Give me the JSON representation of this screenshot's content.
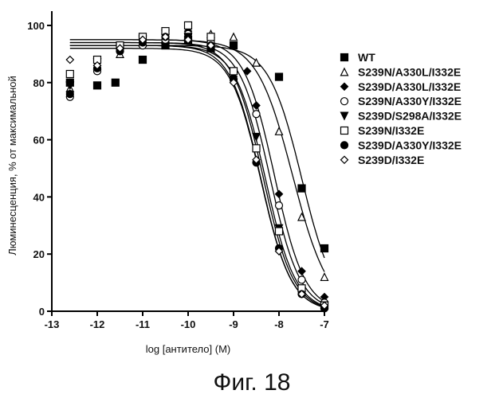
{
  "chart_data": {
    "type": "scatter",
    "xlabel": "log [антитело] (M)",
    "ylabel": "Люминесценция, % от максимальной",
    "xlim": [
      -13,
      -7
    ],
    "ylim": [
      0,
      105
    ],
    "x_ticks": [
      -13,
      -12,
      -11,
      -10,
      -9,
      -8,
      -7
    ],
    "y_ticks": [
      0,
      20,
      40,
      60,
      80,
      100
    ],
    "legend_position": "right",
    "grid": false,
    "caption": "Фиг. 18",
    "series": [
      {
        "name": "WT",
        "marker": "square-filled",
        "x": [
          -12.6,
          -12,
          -11.6,
          -11,
          -10.5,
          -10,
          -9.5,
          -9,
          -8,
          -7.5,
          -7
        ],
        "y": [
          80,
          79,
          80,
          88,
          93,
          95,
          92,
          93,
          82,
          43,
          22
        ],
        "fit": {
          "top": 93,
          "bottom": 0,
          "logec50": -7.5,
          "hill": 1.2
        }
      },
      {
        "name": "S239N/A330L/I332E",
        "marker": "triangle-open",
        "x": [
          -12.6,
          -12,
          -11.5,
          -11,
          -10.5,
          -10,
          -9.5,
          -9,
          -8.5,
          -8,
          -7.5,
          -7
        ],
        "y": [
          78,
          86,
          90,
          94,
          95,
          96,
          97,
          96,
          87,
          63,
          33,
          12
        ],
        "fit": {
          "top": 95,
          "bottom": 0,
          "logec50": -7.7,
          "hill": 1.1
        }
      },
      {
        "name": "S239D/A330L/I332E",
        "marker": "diamond-filled",
        "x": [
          -12.6,
          -12,
          -11.5,
          -11,
          -10.5,
          -10,
          -9.5,
          -9,
          -8.7,
          -8.5,
          -8,
          -7.5,
          -7
        ],
        "y": [
          80,
          86,
          92,
          95,
          97,
          98,
          93,
          82,
          84,
          72,
          41,
          14,
          5
        ],
        "fit": {
          "top": 95,
          "bottom": 0,
          "logec50": -8.1,
          "hill": 1.3
        }
      },
      {
        "name": "S239N/A330Y/I332E",
        "marker": "circle-open",
        "x": [
          -12.6,
          -12,
          -11.5,
          -11,
          -10.5,
          -10,
          -9.5,
          -9,
          -8.5,
          -8,
          -7.5,
          -7
        ],
        "y": [
          75,
          84,
          91,
          93,
          95,
          97,
          94,
          84,
          69,
          37,
          11,
          3
        ],
        "fit": {
          "top": 94,
          "bottom": 0,
          "logec50": -8.2,
          "hill": 1.3
        }
      },
      {
        "name": "S239D/S298A/I332E",
        "marker": "triangle-down-filled",
        "x": [
          -12.6,
          -12,
          -11.5,
          -11,
          -10.5,
          -10,
          -9.5,
          -9,
          -8.5,
          -8,
          -7.5,
          -7
        ],
        "y": [
          79,
          87,
          92,
          95,
          97,
          96,
          92,
          80,
          61,
          29,
          7,
          2
        ],
        "fit": {
          "top": 93,
          "bottom": 0,
          "logec50": -8.3,
          "hill": 1.3
        }
      },
      {
        "name": "S239N/I332E",
        "marker": "square-open",
        "x": [
          -12.6,
          -12,
          -11.5,
          -11,
          -10.5,
          -10,
          -9.5,
          -9,
          -8.5,
          -8,
          -7.5,
          -7
        ],
        "y": [
          83,
          88,
          93,
          96,
          98,
          100,
          96,
          84,
          57,
          28,
          8,
          2
        ],
        "fit": {
          "top": 94,
          "bottom": 0,
          "logec50": -8.35,
          "hill": 1.3
        }
      },
      {
        "name": "S239D/A330Y/I332E",
        "marker": "circle-filled",
        "x": [
          -12.6,
          -12,
          -11.5,
          -11,
          -10.5,
          -10,
          -9.5,
          -9,
          -8.5,
          -8,
          -7.5,
          -7
        ],
        "y": [
          76,
          85,
          91,
          94,
          96,
          95,
          93,
          81,
          52,
          22,
          6,
          1
        ],
        "fit": {
          "top": 93,
          "bottom": 0,
          "logec50": -8.4,
          "hill": 1.3
        }
      },
      {
        "name": "S239D/I332E",
        "marker": "diamond-open",
        "x": [
          -12.6,
          -12,
          -11.5,
          -11,
          -10.5,
          -10,
          -9.5,
          -9,
          -8.5,
          -8,
          -7.5,
          -7
        ],
        "y": [
          88,
          86,
          92,
          95,
          96,
          95,
          93,
          80,
          53,
          21,
          6,
          2
        ],
        "fit": {
          "top": 92,
          "bottom": 0,
          "logec50": -8.4,
          "hill": 1.3
        }
      }
    ]
  }
}
